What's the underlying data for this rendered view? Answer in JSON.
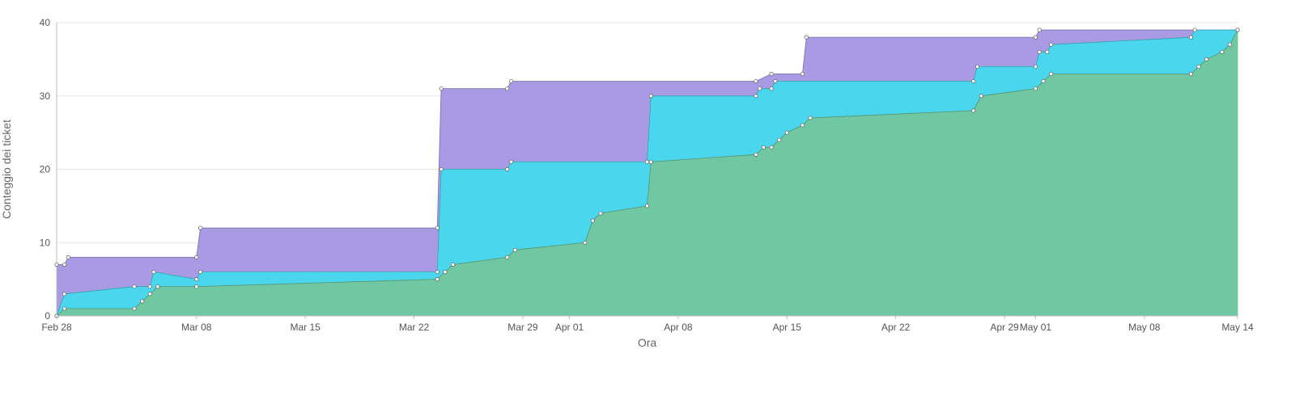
{
  "chart_data": {
    "type": "area",
    "stacked": true,
    "step": true,
    "xlabel": "Ora",
    "ylabel": "Conteggio dei ticket",
    "x_tick_labels": [
      "Feb 28",
      "Mar 08",
      "Mar 15",
      "Mar 22",
      "Mar 29",
      "Apr 01",
      "Apr 08",
      "Apr 15",
      "Apr 22",
      "Apr 29",
      "May 01",
      "May 08",
      "May 14"
    ],
    "x_ticks": [
      "2024-02-28",
      "2024-03-08",
      "2024-03-15",
      "2024-03-22",
      "2024-03-29",
      "2024-04-01",
      "2024-04-08",
      "2024-04-15",
      "2024-04-22",
      "2024-04-29",
      "2024-05-01",
      "2024-05-08",
      "2024-05-14"
    ],
    "xlim": [
      "2024-02-28",
      "2024-05-14"
    ],
    "y_tick_labels": [
      "0",
      "10",
      "20",
      "30",
      "40"
    ],
    "ylim": [
      0,
      40
    ],
    "grid": true,
    "legend": false,
    "series": [
      {
        "color": "#6fc8a1",
        "points": [
          [
            "2024-02-28",
            0
          ],
          [
            "2024-02-28T12:00",
            1
          ],
          [
            "2024-03-04",
            1
          ],
          [
            "2024-03-04T12:00",
            2
          ],
          [
            "2024-03-05",
            3
          ],
          [
            "2024-03-05T12:00",
            4
          ],
          [
            "2024-03-08",
            4
          ],
          [
            "2024-03-23T12:00",
            5
          ],
          [
            "2024-03-24",
            6
          ],
          [
            "2024-03-24T12:00",
            7
          ],
          [
            "2024-03-28",
            8
          ],
          [
            "2024-03-28T12:00",
            9
          ],
          [
            "2024-04-02",
            10
          ],
          [
            "2024-04-02T12:00",
            13
          ],
          [
            "2024-04-03",
            14
          ],
          [
            "2024-04-06",
            15
          ],
          [
            "2024-04-06T06:00",
            21
          ],
          [
            "2024-04-13",
            22
          ],
          [
            "2024-04-13T12:00",
            23
          ],
          [
            "2024-04-14",
            23
          ],
          [
            "2024-04-14T12:00",
            24
          ],
          [
            "2024-04-15",
            25
          ],
          [
            "2024-04-16",
            26
          ],
          [
            "2024-04-16T12:00",
            27
          ],
          [
            "2024-04-27",
            28
          ],
          [
            "2024-04-27T12:00",
            30
          ],
          [
            "2024-05-01",
            31
          ],
          [
            "2024-05-01T12:00",
            32
          ],
          [
            "2024-05-02",
            33
          ],
          [
            "2024-05-11",
            33
          ],
          [
            "2024-05-11T12:00",
            34
          ],
          [
            "2024-05-12",
            35
          ],
          [
            "2024-05-13",
            36
          ],
          [
            "2024-05-13T12:00",
            37
          ],
          [
            "2024-05-14",
            39
          ]
        ]
      },
      {
        "color": "#4ad6ec",
        "points": [
          [
            "2024-02-28",
            0
          ],
          [
            "2024-02-28T12:00",
            3
          ],
          [
            "2024-03-04",
            4
          ],
          [
            "2024-03-05",
            4
          ],
          [
            "2024-03-05T06:00",
            6
          ],
          [
            "2024-03-08",
            5
          ],
          [
            "2024-03-08T06:00",
            6
          ],
          [
            "2024-03-23T12:00",
            6
          ],
          [
            "2024-03-23T18:00",
            20
          ],
          [
            "2024-03-28",
            20
          ],
          [
            "2024-03-28T06:00",
            21
          ],
          [
            "2024-04-06",
            21
          ],
          [
            "2024-04-06T06:00",
            30
          ],
          [
            "2024-04-13",
            30
          ],
          [
            "2024-04-13T06:00",
            31
          ],
          [
            "2024-04-14",
            31
          ],
          [
            "2024-04-14T06:00",
            32
          ],
          [
            "2024-04-27",
            32
          ],
          [
            "2024-04-27T06:00",
            34
          ],
          [
            "2024-05-01",
            34
          ],
          [
            "2024-05-01T06:00",
            36
          ],
          [
            "2024-05-01T18:00",
            36
          ],
          [
            "2024-05-02",
            37
          ],
          [
            "2024-05-11",
            38
          ],
          [
            "2024-05-11T06:00",
            39
          ],
          [
            "2024-05-14",
            39
          ]
        ]
      },
      {
        "color": "#a89be3",
        "points": [
          [
            "2024-02-28",
            7
          ],
          [
            "2024-02-28T12:00",
            7
          ],
          [
            "2024-02-28T18:00",
            8
          ],
          [
            "2024-03-08",
            8
          ],
          [
            "2024-03-08T06:00",
            12
          ],
          [
            "2024-03-23T12:00",
            12
          ],
          [
            "2024-03-23T18:00",
            31
          ],
          [
            "2024-03-28",
            31
          ],
          [
            "2024-03-28T06:00",
            32
          ],
          [
            "2024-04-13",
            32
          ],
          [
            "2024-04-14",
            33
          ],
          [
            "2024-04-16",
            33
          ],
          [
            "2024-04-16T06:00",
            38
          ],
          [
            "2024-05-01",
            38
          ],
          [
            "2024-05-01T06:00",
            39
          ],
          [
            "2024-05-14",
            39
          ]
        ]
      }
    ]
  }
}
